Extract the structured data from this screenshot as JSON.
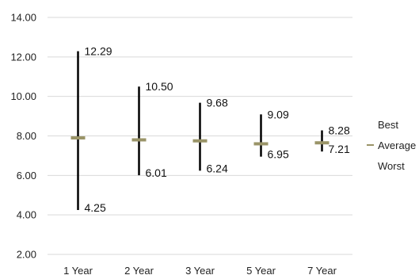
{
  "chart_data": {
    "type": "bar",
    "categories": [
      "1 Year",
      "2 Year",
      "3 Year",
      "5 Year",
      "7 Year"
    ],
    "series": [
      {
        "name": "Best",
        "values": [
          12.29,
          10.5,
          9.68,
          9.09,
          8.28
        ]
      },
      {
        "name": "Average",
        "values": [
          7.9,
          7.8,
          7.75,
          7.6,
          7.65
        ]
      },
      {
        "name": "Worst",
        "values": [
          4.25,
          6.01,
          6.24,
          6.95,
          7.21
        ]
      }
    ],
    "data_labels": {
      "best": [
        "12.29",
        "10.50",
        "9.68",
        "9.09",
        "8.28"
      ],
      "worst": [
        "4.25",
        "6.01",
        "6.24",
        "6.95",
        "7.21"
      ]
    },
    "yticks": [
      "14.00",
      "12.00",
      "10.00",
      "8.00",
      "6.00",
      "4.00",
      "2.00"
    ],
    "ylim": [
      2,
      14
    ],
    "grid": true,
    "legend_position": "right",
    "legend": [
      "Best",
      "Average",
      "Worst"
    ],
    "colors": {
      "range": "#000000",
      "average": "#9a9468",
      "grid": "#d9d9d9"
    }
  }
}
